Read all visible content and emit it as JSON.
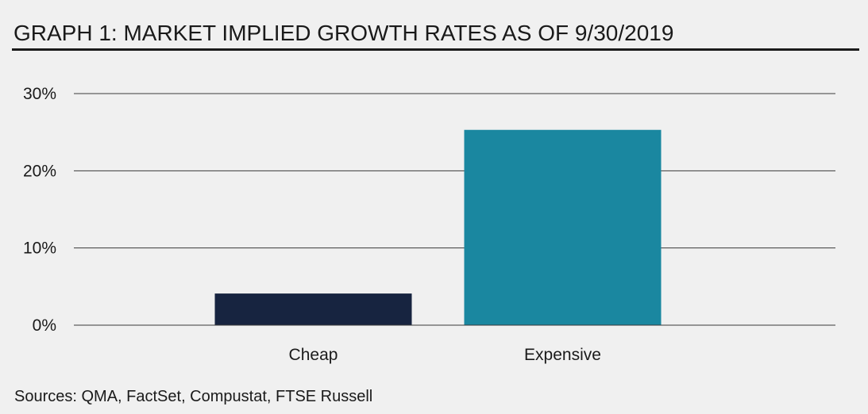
{
  "header": {
    "title": "GRAPH 1: MARKET IMPLIED GROWTH RATES AS OF 9/30/2019"
  },
  "footer": {
    "sources": "Sources: QMA, FactSet, Compustat, FTSE Russell"
  },
  "chart_data": {
    "type": "bar",
    "title": "GRAPH 1: MARKET IMPLIED GROWTH RATES AS OF 9/30/2019",
    "xlabel": "",
    "ylabel": "",
    "categories": [
      "Cheap",
      "Expensive"
    ],
    "values": [
      4.1,
      25.3
    ],
    "bar_colors": [
      "#172440",
      "#1a87a0"
    ],
    "ylim": [
      0,
      30
    ],
    "yticks": [
      0,
      10,
      20,
      30
    ],
    "ytick_labels": [
      "0%",
      "10%",
      "20%",
      "30%"
    ],
    "grid": true,
    "legend": "none"
  }
}
